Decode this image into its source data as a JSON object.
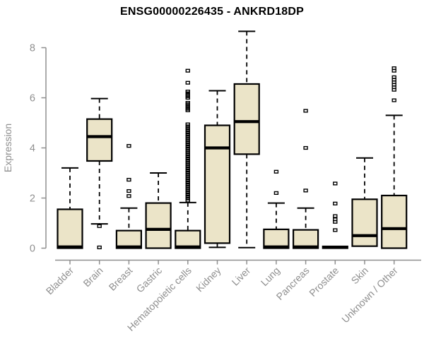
{
  "title": "ENSG00000226435 - ANKRD18DP",
  "chart_data": {
    "type": "boxplot",
    "title": "ENSG00000226435 - ANKRD18DP",
    "xlabel": "",
    "ylabel": "Expression",
    "ylim": [
      0,
      8.7
    ],
    "yticks": [
      0,
      2,
      4,
      6,
      8
    ],
    "grid": false,
    "legend": "none",
    "colors": {
      "box_fill": "#ebe4c8",
      "box_stroke": "#000000",
      "median": "#000000",
      "axis": "#8f8f8f",
      "tick_label": "#8f8f8f",
      "title": "#000000"
    },
    "categories": [
      "Bladder",
      "Brain",
      "Breast",
      "Gastric",
      "Hematopoietic cells",
      "Kidney",
      "Liver",
      "Lung",
      "Pancreas",
      "Prostate",
      "Skin",
      "Unknown / Other"
    ],
    "series": [
      {
        "name": "Bladder",
        "low": 0,
        "q1": 0,
        "median": 0.05,
        "q3": 1.55,
        "high": 3.2,
        "outliers": []
      },
      {
        "name": "Brain",
        "low": 0.97,
        "q1": 3.48,
        "median": 4.45,
        "q3": 5.15,
        "high": 5.97,
        "outliers": [
          0.88,
          0.03
        ]
      },
      {
        "name": "Breast",
        "low": 0,
        "q1": 0,
        "median": 0.05,
        "q3": 0.7,
        "high": 1.6,
        "outliers": [
          2.08,
          2.28,
          2.73,
          4.08
        ]
      },
      {
        "name": "Gastric",
        "low": 0,
        "q1": 0,
        "median": 0.75,
        "q3": 1.8,
        "high": 3.0,
        "outliers": []
      },
      {
        "name": "Hematopoietic cells",
        "low": 0,
        "q1": 0,
        "median": 0.05,
        "q3": 0.7,
        "high": 1.82,
        "outliers": [
          1.9,
          1.98,
          2.06,
          2.14,
          2.22,
          2.3,
          2.38,
          2.46,
          2.54,
          2.62,
          2.7,
          2.78,
          2.86,
          2.94,
          3.02,
          3.1,
          3.18,
          3.26,
          3.34,
          3.42,
          3.5,
          3.58,
          3.66,
          3.74,
          3.82,
          3.9,
          3.98,
          4.06,
          4.14,
          4.22,
          4.3,
          4.38,
          4.46,
          4.54,
          4.62,
          4.7,
          4.78,
          4.86,
          4.94,
          5.5,
          5.56,
          5.62,
          5.68,
          5.74,
          5.8,
          6.0,
          6.06,
          6.12,
          6.18,
          6.25,
          6.6,
          7.08
        ]
      },
      {
        "name": "Kidney",
        "low": 0.03,
        "q1": 0.2,
        "median": 4.0,
        "q3": 4.9,
        "high": 6.28,
        "outliers": []
      },
      {
        "name": "Liver",
        "low": 0.02,
        "q1": 3.75,
        "median": 5.05,
        "q3": 6.55,
        "high": 8.65,
        "outliers": []
      },
      {
        "name": "Lung",
        "low": 0,
        "q1": 0,
        "median": 0.05,
        "q3": 0.75,
        "high": 1.8,
        "outliers": [
          2.2,
          3.05
        ]
      },
      {
        "name": "Pancreas",
        "low": 0,
        "q1": 0,
        "median": 0.05,
        "q3": 0.73,
        "high": 1.6,
        "outliers": [
          2.3,
          4.0,
          5.48
        ]
      },
      {
        "name": "Prostate",
        "low": 0,
        "q1": 0,
        "median": 0.03,
        "q3": 0.07,
        "high": 0.07,
        "outliers": [
          0.72,
          1.05,
          1.15,
          1.28,
          1.78,
          2.58
        ]
      },
      {
        "name": "Skin",
        "low": 0.05,
        "q1": 0.08,
        "median": 0.5,
        "q3": 1.95,
        "high": 3.6,
        "outliers": []
      },
      {
        "name": "Unknown / Other",
        "low": 0,
        "q1": 0,
        "median": 0.78,
        "q3": 2.1,
        "high": 5.3,
        "outliers": [
          5.9,
          6.32,
          6.42,
          6.52,
          6.62,
          6.72,
          6.82,
          7.08,
          7.18
        ]
      }
    ]
  }
}
